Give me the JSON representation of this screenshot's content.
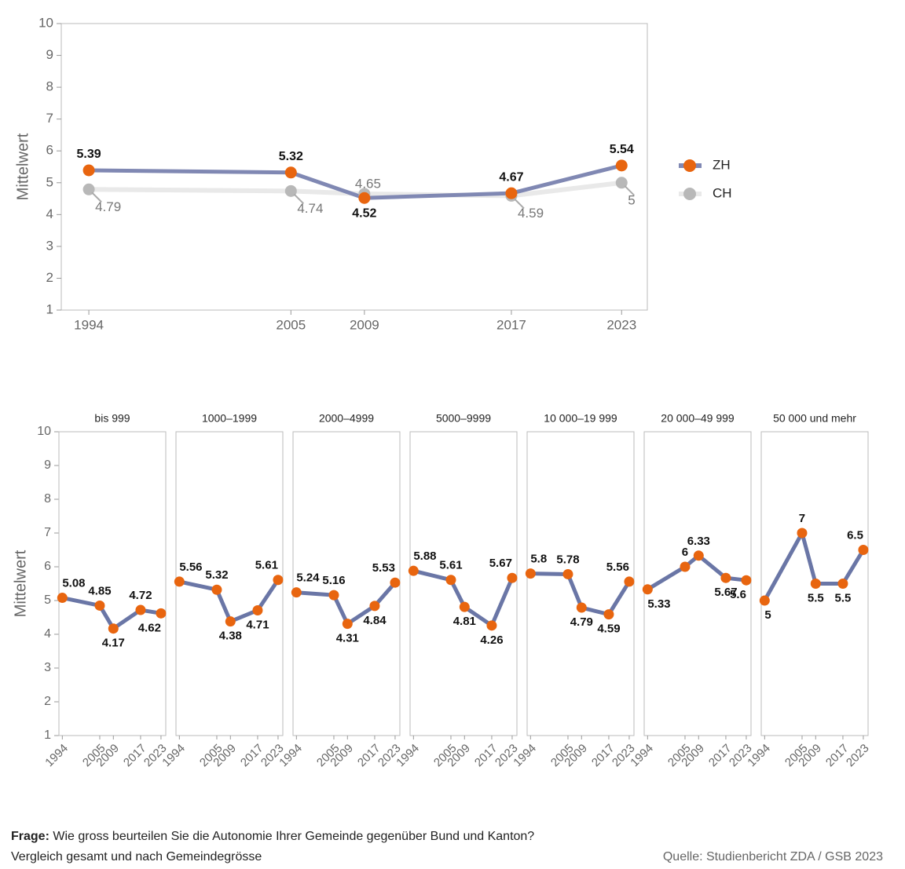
{
  "chart_data": [
    {
      "type": "line",
      "y_label": "Mittelwert",
      "x": [
        1994,
        2005,
        2009,
        2017,
        2023
      ],
      "xlim": [
        1992.5,
        2024.4
      ],
      "xticks": [
        1994,
        2005,
        2009,
        2017,
        2023
      ],
      "ylim": [
        1,
        10
      ],
      "yticks": [
        1,
        2,
        3,
        4,
        5,
        6,
        7,
        8,
        9,
        10
      ],
      "legend": "right",
      "series": [
        {
          "name": "ZH",
          "color": "#8088b3",
          "marker_color": "#e8650f",
          "values": [
            5.39,
            5.32,
            4.52,
            4.67,
            5.54
          ]
        },
        {
          "name": "CH",
          "color": "#e9e9e9",
          "marker_color": "#b8b8b8",
          "values": [
            4.79,
            4.74,
            4.65,
            4.59,
            5
          ]
        }
      ]
    },
    {
      "type": "line",
      "y_label": "Mittelwert",
      "x": [
        1994,
        2005,
        2009,
        2017,
        2023
      ],
      "xlim": [
        1993,
        2024.4
      ],
      "xticks": [
        1994,
        2005,
        2009,
        2017,
        2023
      ],
      "ylim": [
        1,
        10
      ],
      "yticks": [
        1,
        2,
        3,
        4,
        5,
        6,
        7,
        8,
        9,
        10
      ],
      "color": "#6a76a6",
      "marker_color": "#e8650f",
      "panels": [
        {
          "title": "bis 999",
          "values": [
            5.08,
            4.85,
            4.17,
            4.72,
            4.62
          ]
        },
        {
          "title": "1000–1999",
          "values": [
            5.56,
            5.32,
            4.38,
            4.71,
            5.61
          ]
        },
        {
          "title": "2000–4999",
          "values": [
            5.24,
            5.16,
            4.31,
            4.84,
            5.53
          ]
        },
        {
          "title": "5000–9999",
          "values": [
            5.88,
            5.61,
            4.81,
            4.26,
            5.67
          ]
        },
        {
          "title": "10 000–19 999",
          "values": [
            5.8,
            5.78,
            4.79,
            4.59,
            5.56
          ]
        },
        {
          "title": "20 000–49 999",
          "values": [
            5.33,
            6,
            6.33,
            5.67,
            5.6
          ]
        },
        {
          "title": "50 000 und mehr",
          "values": [
            5,
            7,
            5.5,
            5.5,
            6.5
          ]
        }
      ]
    }
  ],
  "notes": {
    "question_label": "Frage:",
    "question": "Wie gross beurteilen Sie die Autonomie Ihrer Gemeinde gegenüber Bund und Kanton?",
    "subtitle": "Vergleich gesamt und nach Gemeindegrösse",
    "source": "Quelle: Studienbericht ZDA / GSB 2023"
  }
}
